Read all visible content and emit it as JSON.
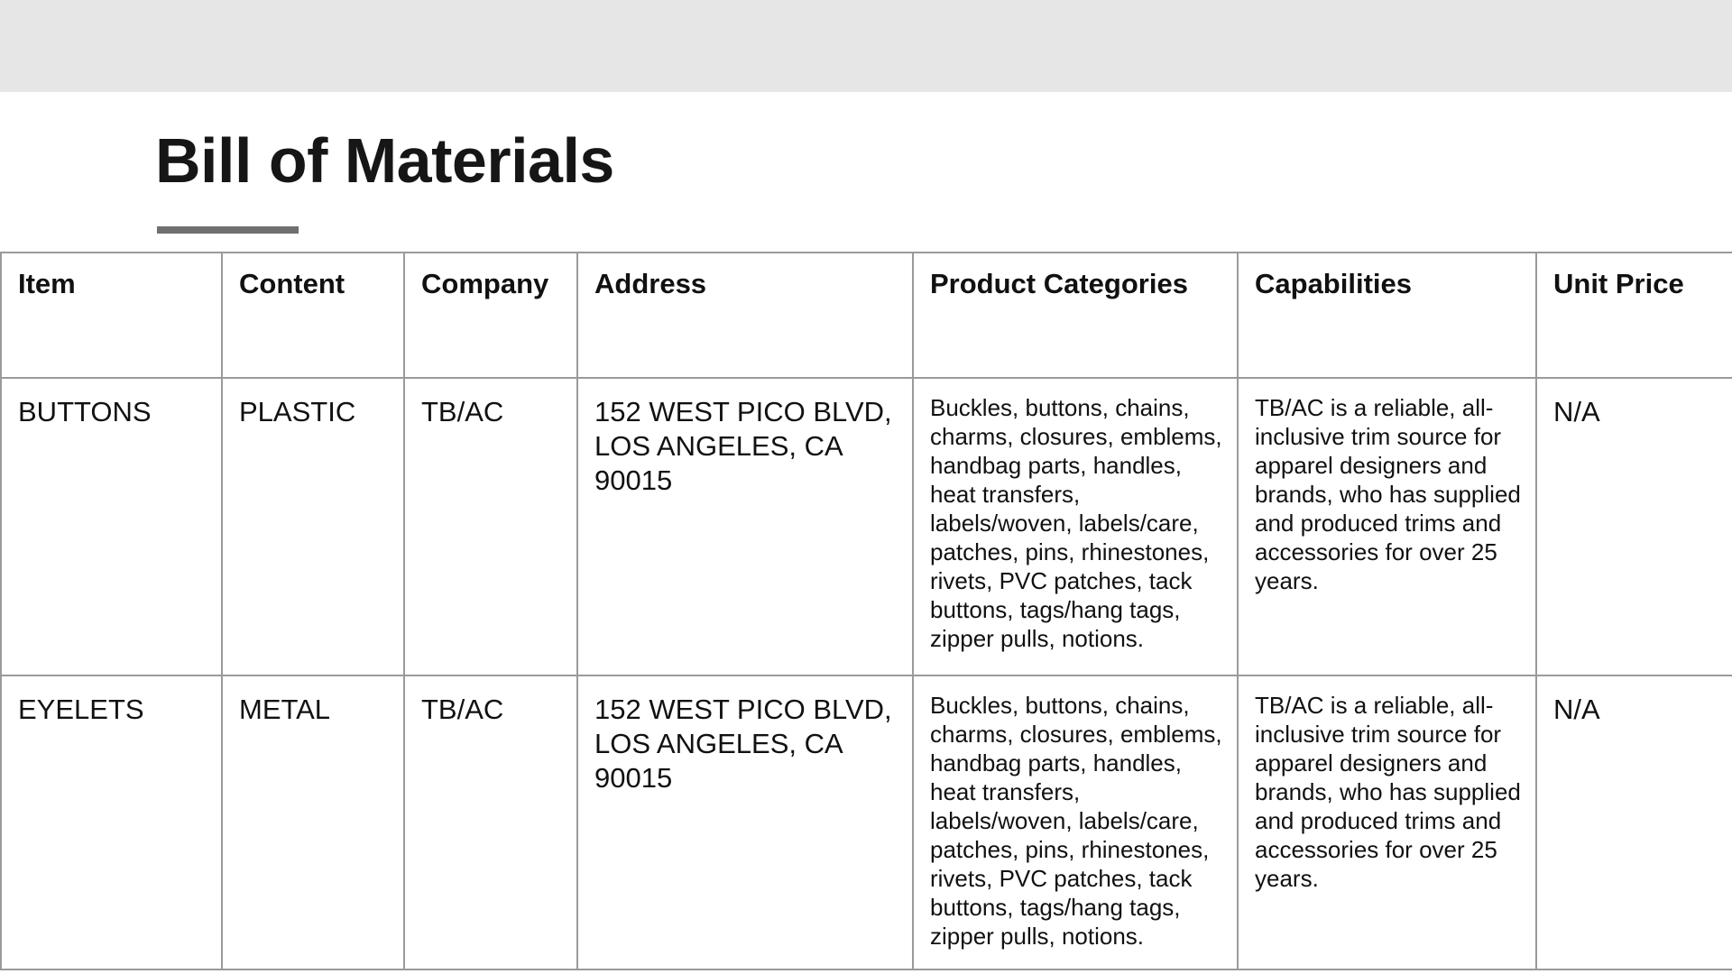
{
  "title": "Bill of Materials",
  "table": {
    "headers": [
      "Item",
      "Content",
      "Company",
      "Address",
      "Product Categories",
      "Capabilities",
      "Unit Price"
    ],
    "rows": [
      {
        "item": "BUTTONS",
        "content": "PLASTIC",
        "company": "TB/AC",
        "address": "152 WEST PICO BLVD, LOS ANGELES, CA 90015",
        "categories": "Buckles, buttons, chains, charms, closures, emblems, handbag parts, handles, heat transfers, labels/woven, labels/care, patches, pins, rhinestones, rivets, PVC patches, tack buttons, tags/hang tags, zipper pulls, notions.",
        "capabilities": "TB/AC is a reliable, all-inclusive trim source for apparel designers and brands, who has supplied and produced trims and accessories for over 25 years.",
        "unit_price": "N/A"
      },
      {
        "item": "EYELETS",
        "content": "METAL",
        "company": "TB/AC",
        "address": "152 WEST PICO BLVD, LOS ANGELES, CA 90015",
        "categories": "Buckles, buttons, chains, charms, closures, emblems, handbag parts, handles, heat transfers, labels/woven, labels/care, patches, pins, rhinestones, rivets, PVC patches, tack buttons, tags/hang tags, zipper pulls, notions.",
        "capabilities": "TB/AC is a reliable, all-inclusive trim source for apparel designers and brands, who has supplied and produced trims and accessories for over 25 years.",
        "unit_price": "N/A"
      }
    ]
  }
}
